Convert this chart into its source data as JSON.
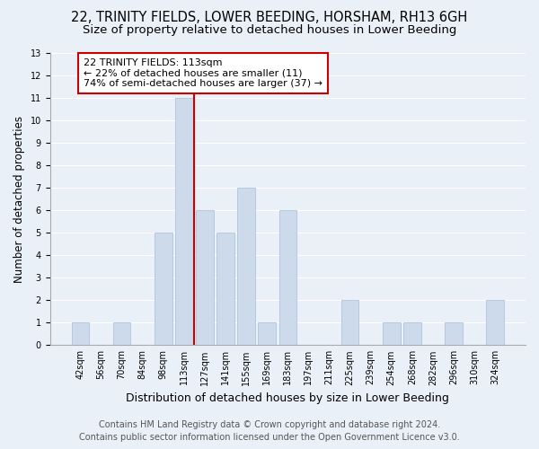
{
  "title": "22, TRINITY FIELDS, LOWER BEEDING, HORSHAM, RH13 6GH",
  "subtitle": "Size of property relative to detached houses in Lower Beeding",
  "xlabel": "Distribution of detached houses by size in Lower Beeding",
  "ylabel": "Number of detached properties",
  "categories": [
    "42sqm",
    "56sqm",
    "70sqm",
    "84sqm",
    "98sqm",
    "113sqm",
    "127sqm",
    "141sqm",
    "155sqm",
    "169sqm",
    "183sqm",
    "197sqm",
    "211sqm",
    "225sqm",
    "239sqm",
    "254sqm",
    "268sqm",
    "282sqm",
    "296sqm",
    "310sqm",
    "324sqm"
  ],
  "values": [
    1,
    0,
    1,
    0,
    5,
    11,
    6,
    5,
    7,
    1,
    6,
    0,
    0,
    2,
    0,
    1,
    1,
    0,
    1,
    0,
    2
  ],
  "bar_color": "#ccdaeb",
  "bar_edgecolor": "#b0c4d8",
  "highlight_index": 5,
  "annotation_text": "22 TRINITY FIELDS: 113sqm\n← 22% of detached houses are smaller (11)\n74% of semi-detached houses are larger (37) →",
  "annotation_box_color": "white",
  "annotation_box_edgecolor": "#cc0000",
  "vline_color": "#cc0000",
  "ylim": [
    0,
    13
  ],
  "yticks": [
    0,
    1,
    2,
    3,
    4,
    5,
    6,
    7,
    8,
    9,
    10,
    11,
    12,
    13
  ],
  "footer_line1": "Contains HM Land Registry data © Crown copyright and database right 2024.",
  "footer_line2": "Contains public sector information licensed under the Open Government Licence v3.0.",
  "bg_color": "#eaf0f8",
  "grid_color": "#ffffff",
  "title_fontsize": 10.5,
  "subtitle_fontsize": 9.5,
  "xlabel_fontsize": 9,
  "ylabel_fontsize": 8.5,
  "tick_fontsize": 7,
  "annotation_fontsize": 8,
  "footer_fontsize": 7
}
